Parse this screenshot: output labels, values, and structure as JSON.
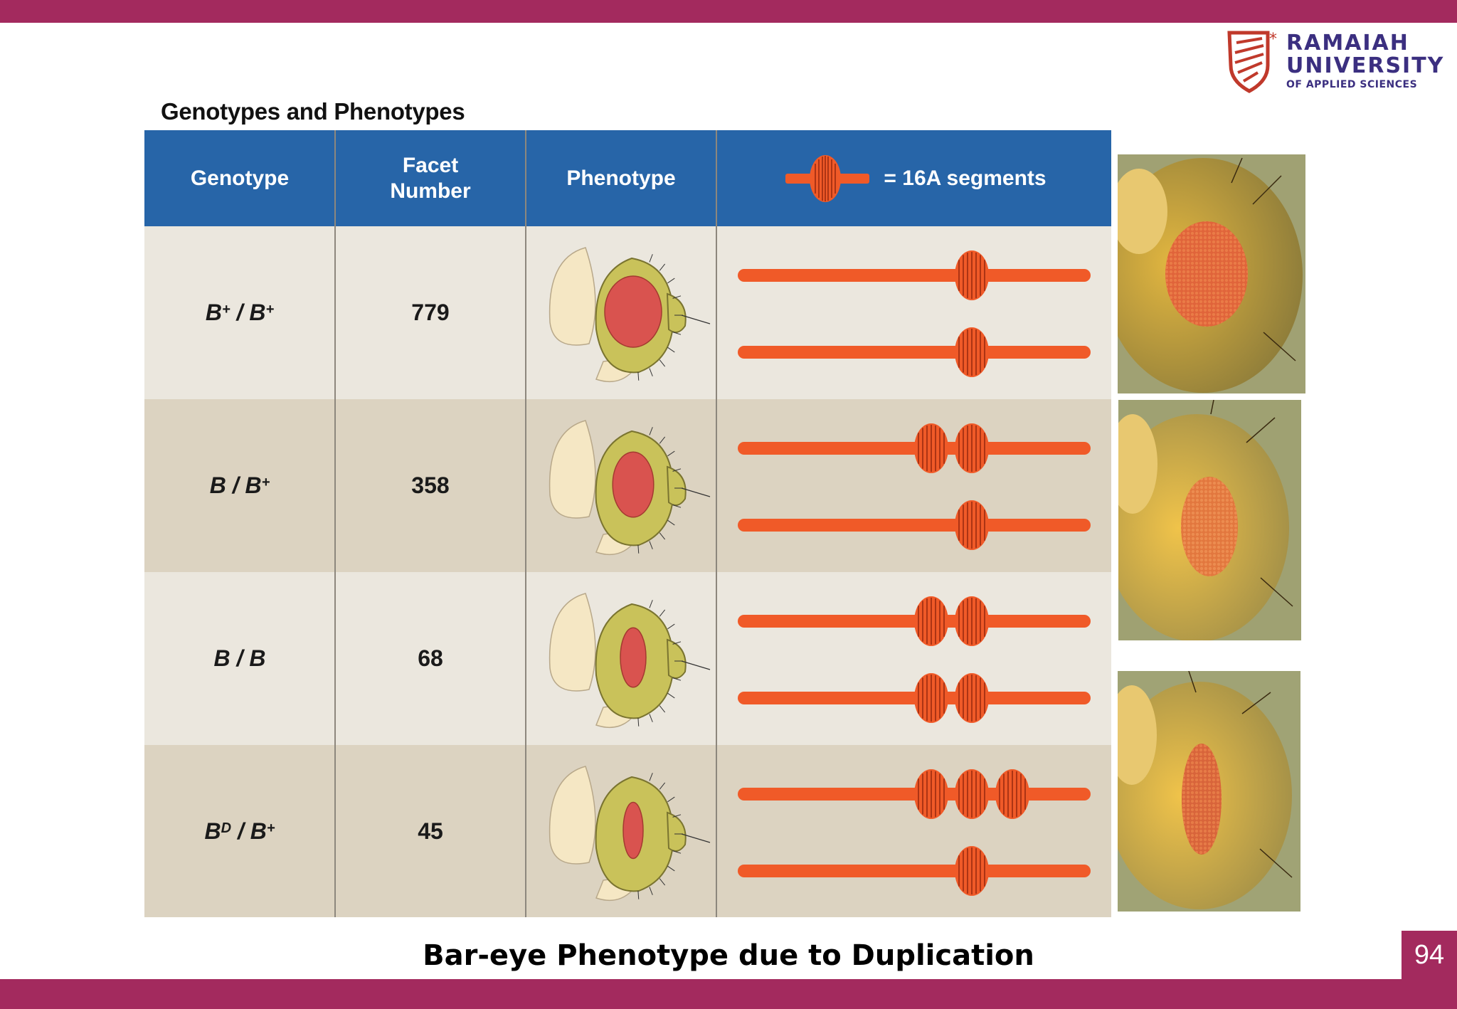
{
  "branding": {
    "line1": "RAMAIAH",
    "line2": "UNIVERSITY",
    "line3": "OF APPLIED SCIENCES",
    "colors": {
      "band": "#a32a5e",
      "logo_text": "#3b2f80",
      "logo_mark": "#c0392b"
    }
  },
  "figure": {
    "title": "Genotypes and Phenotypes",
    "headers": {
      "genotype": "Genotype",
      "facet_number": "Facet Number",
      "phenotype": "Phenotype",
      "legend_label": "= 16A segments"
    },
    "rows": [
      {
        "genotype_base": "B",
        "genotype_sup": "+",
        "genotype_sep": " / ",
        "genotype_base2": "B",
        "genotype_sup2": "+",
        "facets": "779",
        "chrom_top": 1,
        "chrom_bottom": 1,
        "eye_size": 1.0
      },
      {
        "genotype_base": "B",
        "genotype_sup": "",
        "genotype_sep": " / ",
        "genotype_base2": "B",
        "genotype_sup2": "+",
        "facets": "358",
        "chrom_top": 2,
        "chrom_bottom": 1,
        "eye_size": 0.72
      },
      {
        "genotype_base": "B",
        "genotype_sup": "",
        "genotype_sep": " / ",
        "genotype_base2": "B",
        "genotype_sup2": "",
        "facets": "68",
        "chrom_top": 2,
        "chrom_bottom": 2,
        "eye_size": 0.45
      },
      {
        "genotype_base": "B",
        "genotype_sup": "D",
        "genotype_sep": " / ",
        "genotype_base2": "B",
        "genotype_sup2": "+",
        "facets": "45",
        "chrom_top": 3,
        "chrom_bottom": 1,
        "eye_size": 0.3
      }
    ],
    "colors": {
      "header": "#2765a8",
      "row_light": "#ebe7de",
      "row_dark": "#dcd3c1",
      "chromosome": "#f05a28",
      "eye": "#d9534f",
      "head": "#c9c25a"
    }
  },
  "caption": "Bar-eye Phenotype due to Duplication",
  "page_number": "94"
}
